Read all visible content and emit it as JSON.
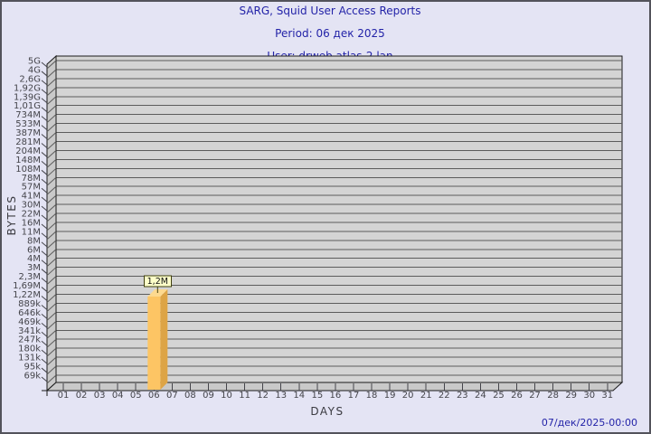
{
  "window": {
    "background": "#e4e4f4",
    "border_color": "#53535b"
  },
  "header": {
    "title_line1": "SARG, Squid User Access Reports",
    "title_line2": "Period: 06 дек 2025",
    "title_line3": "User: drweb.atlas-2.lan"
  },
  "footer": {
    "timestamp": "07/дек/2025-00:00"
  },
  "colors": {
    "title_text": "#2323a8",
    "footer_text": "#2323a8",
    "axis_title_text": "#3a3a40",
    "tick_label_text": "#45454b",
    "plot_bg": "#d4d4d4",
    "wall_fill": "#c9c9c9",
    "grid_line": "#5c5c5c",
    "frame_line": "#1a1a1a",
    "bar_front": "#fdc564",
    "bar_side": "#dda446",
    "bar_top": "#fdd98f",
    "value_box_bg": "#fdffc9",
    "value_box_border": "#40400e",
    "value_box_text": "#111111"
  },
  "chart_data": {
    "type": "bar",
    "title": "SARG, Squid User Access Reports",
    "subtitle": [
      "Period: 06 дек 2025",
      "User: drweb.atlas-2.lan"
    ],
    "xlabel": "DAYS",
    "ylabel": "BYTES",
    "categories": [
      "01",
      "02",
      "03",
      "04",
      "05",
      "06",
      "07",
      "08",
      "09",
      "10",
      "11",
      "12",
      "13",
      "14",
      "15",
      "16",
      "17",
      "18",
      "19",
      "20",
      "21",
      "22",
      "23",
      "24",
      "25",
      "26",
      "27",
      "28",
      "29",
      "30",
      "31"
    ],
    "values": [
      0,
      0,
      0,
      0,
      0,
      1200000,
      0,
      0,
      0,
      0,
      0,
      0,
      0,
      0,
      0,
      0,
      0,
      0,
      0,
      0,
      0,
      0,
      0,
      0,
      0,
      0,
      0,
      0,
      0,
      0,
      0
    ],
    "bars": [
      {
        "category": "06",
        "value_bytes": 1200000,
        "label": "1,2M",
        "top_tick": "1,22M"
      }
    ],
    "y_axis": {
      "scale": "sarg-log",
      "tick_labels": [
        "5G",
        "4G",
        "2,6G",
        "1,92G",
        "1,39G",
        "1,01G",
        "734M",
        "533M",
        "387M",
        "281M",
        "204M",
        "148M",
        "108M",
        "78M",
        "57M",
        "41M",
        "30M",
        "22M",
        "16M",
        "11M",
        "8M",
        "6M",
        "4M",
        "3M",
        "2,3M",
        "1,69M",
        "1,22M",
        "889k",
        "646k",
        "469k",
        "341k",
        "247k",
        "180k",
        "131k",
        "95k",
        "69k"
      ]
    },
    "legend": null,
    "grid": "horizontal",
    "style": "3d-bar"
  }
}
